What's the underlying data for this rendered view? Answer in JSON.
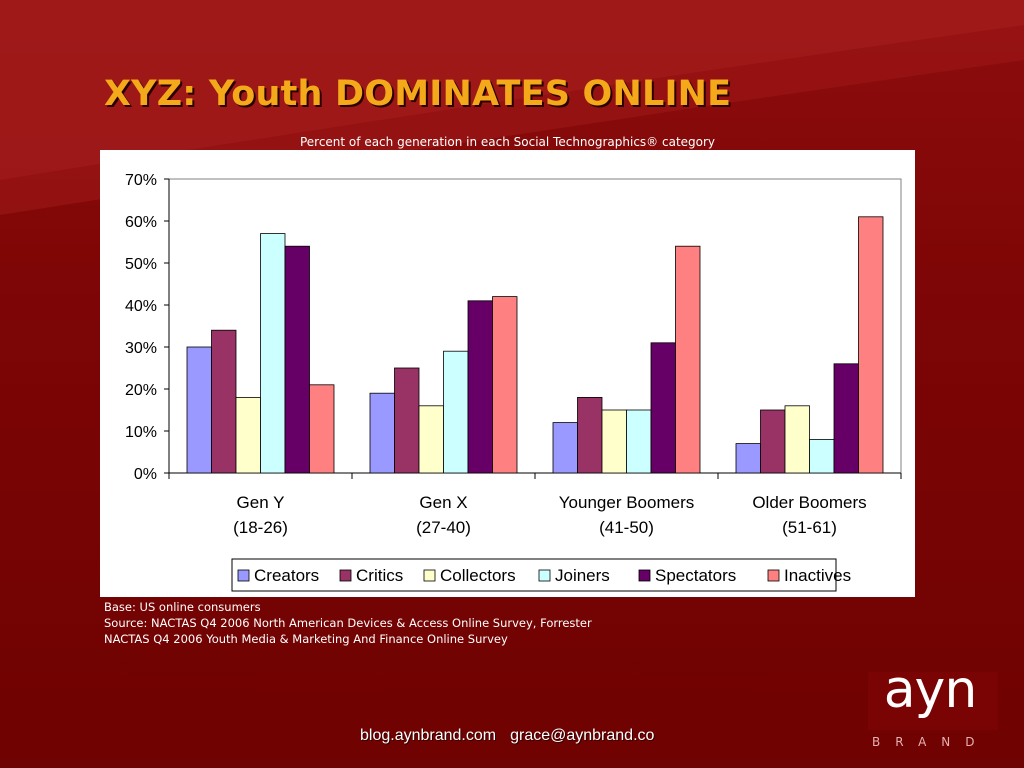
{
  "slide": {
    "title": "XYZ: Youth DOMINATES ONLINE",
    "subtitle": "Percent of each generation in each Social Technographics® category"
  },
  "notes": [
    "Base: US online consumers",
    "Source: NACTAS Q4 2006 North American Devices & Access Online Survey, Forrester",
    "NACTAS Q4 2006 Youth Media & Marketing And Finance Online Survey"
  ],
  "footer": {
    "blog": "blog.aynbrand.com",
    "email": "grace@aynbrand.co"
  },
  "logo": {
    "text": "ayn",
    "subtext": "BRAND"
  },
  "colors": {
    "background": "#7d0505",
    "title": "#f3a91a"
  },
  "chart_data": {
    "type": "bar",
    "categories": [
      [
        "Gen Y",
        "(18-26)"
      ],
      [
        "Gen X",
        "(27-40)"
      ],
      [
        "Younger Boomers",
        "(41-50)"
      ],
      [
        "Older Boomers",
        "(51-61)"
      ]
    ],
    "series": [
      {
        "name": "Creators",
        "color": "#9999ff",
        "values": [
          30,
          19,
          12,
          7
        ]
      },
      {
        "name": "Critics",
        "color": "#993366",
        "values": [
          34,
          25,
          18,
          15
        ]
      },
      {
        "name": "Collectors",
        "color": "#ffffcc",
        "values": [
          18,
          16,
          15,
          16
        ]
      },
      {
        "name": "Joiners",
        "color": "#ccffff",
        "values": [
          57,
          29,
          15,
          8
        ]
      },
      {
        "name": "Spectators",
        "color": "#660066",
        "values": [
          54,
          41,
          31,
          26
        ]
      },
      {
        "name": "Inactives",
        "color": "#ff8080",
        "values": [
          21,
          42,
          54,
          61
        ]
      }
    ],
    "ylim": [
      0,
      70
    ],
    "yticks": [
      "0%",
      "10%",
      "20%",
      "30%",
      "40%",
      "50%",
      "60%",
      "70%"
    ],
    "unit": "%",
    "grid": false,
    "legend": "bottom"
  }
}
